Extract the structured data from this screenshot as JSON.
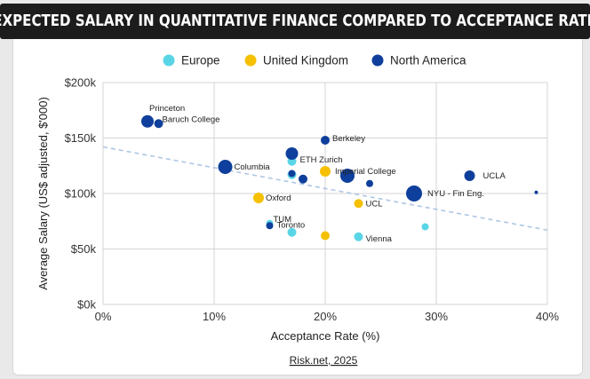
{
  "header": {
    "title": "EXPECTED SALARY IN QUANTITATIVE FINANCE COMPARED TO ACCEPTANCE RATE"
  },
  "source": "Risk.net, 2025",
  "colors": {
    "banner_bg": "#1c1c1c",
    "Europe": "#5ad5e6",
    "United Kingdom": "#f6c000",
    "North America": "#0f3f9c",
    "trendline": "#aec6e4",
    "grid": "#d4d4d4"
  },
  "chart_data": {
    "type": "scatter",
    "xlabel": "Acceptance Rate (%)",
    "ylabel": "Average Salary (US$ adjusted, $'000)",
    "xlim": [
      0,
      40
    ],
    "ylim": [
      0,
      200
    ],
    "x_ticks": [
      "0%",
      "10%",
      "20%",
      "30%",
      "40%"
    ],
    "y_ticks": [
      "$0k",
      "$50k",
      "$100k",
      "$150k",
      "$200k"
    ],
    "grid": true,
    "legend_position": "top",
    "legend": [
      "Europe",
      "United Kingdom",
      "North America"
    ],
    "trendline": {
      "x": [
        0,
        40
      ],
      "y": [
        142,
        67
      ],
      "style": "dashed"
    },
    "series": [
      {
        "name": "Europe",
        "points": [
          {
            "x": 17,
            "y": 129,
            "size": 5,
            "label": "ETH Zurich"
          },
          {
            "x": 17,
            "y": 117,
            "size": 5,
            "label": ""
          },
          {
            "x": 15,
            "y": 73,
            "size": 4,
            "label": "TUM"
          },
          {
            "x": 17,
            "y": 65,
            "size": 5,
            "label": ""
          },
          {
            "x": 23,
            "y": 61,
            "size": 5,
            "label": "Vienna"
          },
          {
            "x": 29,
            "y": 70,
            "size": 4,
            "label": ""
          }
        ]
      },
      {
        "name": "United Kingdom",
        "points": [
          {
            "x": 20,
            "y": 120,
            "size": 6,
            "label": "Imperial College"
          },
          {
            "x": 14,
            "y": 96,
            "size": 6,
            "label": "Oxford"
          },
          {
            "x": 23,
            "y": 91,
            "size": 5,
            "label": "UCL"
          },
          {
            "x": 20,
            "y": 62,
            "size": 5,
            "label": ""
          }
        ]
      },
      {
        "name": "North America",
        "points": [
          {
            "x": 4,
            "y": 165,
            "size": 7,
            "label": "Princeton"
          },
          {
            "x": 5,
            "y": 163,
            "size": 5,
            "label": "Baruch College"
          },
          {
            "x": 20,
            "y": 148,
            "size": 5,
            "label": "Berkeley"
          },
          {
            "x": 17,
            "y": 136,
            "size": 7,
            "label": ""
          },
          {
            "x": 11,
            "y": 124,
            "size": 8,
            "label": "Columbia"
          },
          {
            "x": 17,
            "y": 118,
            "size": 4,
            "label": ""
          },
          {
            "x": 18,
            "y": 113,
            "size": 5,
            "label": ""
          },
          {
            "x": 22,
            "y": 116,
            "size": 8,
            "label": ""
          },
          {
            "x": 24,
            "y": 109,
            "size": 4,
            "label": ""
          },
          {
            "x": 28,
            "y": 100,
            "size": 9,
            "label": "NYU - Fin Eng."
          },
          {
            "x": 33,
            "y": 116,
            "size": 6,
            "label": "UCLA"
          },
          {
            "x": 39,
            "y": 101,
            "size": 2,
            "label": ""
          },
          {
            "x": 15,
            "y": 71,
            "size": 4,
            "label": "Toronto"
          }
        ]
      }
    ]
  }
}
